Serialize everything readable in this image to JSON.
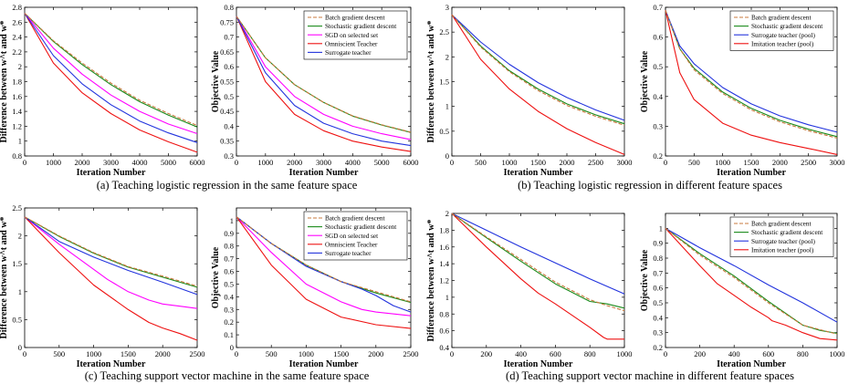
{
  "captions": {
    "a": "(a) Teaching logistic regression in the same feature space",
    "b": "(b) Teaching logistic regression in different feature spaces",
    "c": "(c) Teaching support vector machine in the same feature space",
    "d": "(d) Teaching support vector machine in different feature spaces"
  },
  "colors": {
    "batch": "#c8783c",
    "stochastic": "#1a8a1a",
    "sgd_selected": "#ff00ff",
    "omniscient": "#ee1111",
    "surrogate": "#2233dd",
    "imitation": "#ee1111",
    "axis": "#000000"
  },
  "chart_data": [
    {
      "id": "a1",
      "type": "line",
      "title": "",
      "xlabel": "Iteration Number",
      "ylabel": "Difference between w^t and w*",
      "xlim": [
        0,
        6000
      ],
      "ylim": [
        0.8,
        2.8
      ],
      "xticks": [
        0,
        1000,
        2000,
        3000,
        4000,
        5000,
        6000
      ],
      "yticks": [
        0.8,
        1,
        1.2,
        1.4,
        1.6,
        1.8,
        2,
        2.2,
        2.4,
        2.6,
        2.8
      ],
      "legend": null,
      "series": [
        {
          "name": "Batch gradient descent",
          "key": "batch",
          "dashed": true,
          "x": [
            0,
            1000,
            2000,
            3000,
            4000,
            5000,
            6000
          ],
          "y": [
            2.72,
            2.35,
            2.05,
            1.78,
            1.55,
            1.37,
            1.21
          ]
        },
        {
          "name": "Stochastic gradient descent",
          "key": "stochastic",
          "x": [
            0,
            1000,
            2000,
            3000,
            4000,
            5000,
            6000
          ],
          "y": [
            2.72,
            2.34,
            2.03,
            1.76,
            1.53,
            1.35,
            1.19
          ]
        },
        {
          "name": "SGD on selected set",
          "key": "sgd_selected",
          "x": [
            0,
            1000,
            2000,
            3000,
            4000,
            5000,
            6000
          ],
          "y": [
            2.72,
            2.25,
            1.9,
            1.62,
            1.4,
            1.23,
            1.1
          ]
        },
        {
          "name": "Omniscient Teacher",
          "key": "omniscient",
          "x": [
            0,
            1000,
            2000,
            3000,
            4000,
            5000,
            6000
          ],
          "y": [
            2.72,
            2.05,
            1.65,
            1.37,
            1.15,
            0.99,
            0.85
          ]
        },
        {
          "name": "Surrogate teacher",
          "key": "surrogate",
          "x": [
            0,
            1000,
            2000,
            3000,
            4000,
            5000,
            6000
          ],
          "y": [
            2.72,
            2.15,
            1.77,
            1.49,
            1.27,
            1.11,
            0.98
          ]
        }
      ]
    },
    {
      "id": "a2",
      "type": "line",
      "title": "",
      "xlabel": "Iteration Number",
      "ylabel": "Objective Value",
      "xlim": [
        0,
        6000
      ],
      "ylim": [
        0.3,
        0.8
      ],
      "xticks": [
        0,
        1000,
        2000,
        3000,
        4000,
        5000,
        6000
      ],
      "yticks": [
        0.3,
        0.35,
        0.4,
        0.45,
        0.5,
        0.55,
        0.6,
        0.65,
        0.7,
        0.75,
        0.8
      ],
      "legend": "top-right",
      "series": [
        {
          "name": "Batch gradient descent",
          "key": "batch",
          "dashed": true,
          "x": [
            0,
            1000,
            2000,
            3000,
            4000,
            5000,
            6000
          ],
          "y": [
            0.77,
            0.63,
            0.54,
            0.48,
            0.435,
            0.405,
            0.38
          ]
        },
        {
          "name": "Stochastic gradient descent",
          "key": "stochastic",
          "x": [
            0,
            1000,
            2000,
            3000,
            4000,
            5000,
            6000
          ],
          "y": [
            0.77,
            0.63,
            0.54,
            0.48,
            0.434,
            0.404,
            0.379
          ]
        },
        {
          "name": "SGD on selected set",
          "key": "sgd_selected",
          "x": [
            0,
            1000,
            2000,
            3000,
            4000,
            5000,
            6000
          ],
          "y": [
            0.77,
            0.6,
            0.5,
            0.44,
            0.4,
            0.375,
            0.355
          ]
        },
        {
          "name": "Omniscient Teacher",
          "key": "omniscient",
          "x": [
            0,
            1000,
            2000,
            3000,
            4000,
            5000,
            6000
          ],
          "y": [
            0.77,
            0.55,
            0.44,
            0.385,
            0.35,
            0.33,
            0.315
          ]
        },
        {
          "name": "Surrogate teacher",
          "key": "surrogate",
          "x": [
            0,
            1000,
            2000,
            3000,
            4000,
            5000,
            6000
          ],
          "y": [
            0.77,
            0.58,
            0.47,
            0.41,
            0.375,
            0.35,
            0.335
          ]
        }
      ]
    },
    {
      "id": "b1",
      "type": "line",
      "title": "",
      "xlabel": "Iteration Number",
      "ylabel": "Difference between w^t and w*",
      "xlim": [
        0,
        3000
      ],
      "ylim": [
        0,
        3
      ],
      "xticks": [
        0,
        500,
        1000,
        1500,
        2000,
        2500,
        3000
      ],
      "yticks": [
        0,
        0.5,
        1,
        1.5,
        2,
        2.5,
        3
      ],
      "legend": null,
      "series": [
        {
          "name": "Batch gradient descent",
          "key": "batch",
          "dashed": true,
          "x": [
            0,
            500,
            1000,
            1500,
            2000,
            2500,
            3000
          ],
          "y": [
            2.85,
            2.2,
            1.7,
            1.32,
            1.02,
            0.8,
            0.62
          ]
        },
        {
          "name": "Stochastic gradient descent",
          "key": "stochastic",
          "x": [
            0,
            500,
            1000,
            1500,
            2000,
            2500,
            3000
          ],
          "y": [
            2.85,
            2.22,
            1.72,
            1.35,
            1.05,
            0.83,
            0.65
          ]
        },
        {
          "name": "Surrogate teacher (pool)",
          "key": "surrogate",
          "x": [
            0,
            500,
            1000,
            1500,
            2000,
            2500,
            3000
          ],
          "y": [
            2.85,
            2.3,
            1.85,
            1.48,
            1.18,
            0.93,
            0.72
          ]
        },
        {
          "name": "Imitation teacher (pool)",
          "key": "imitation",
          "x": [
            0,
            500,
            1000,
            1500,
            2000,
            2500,
            3000
          ],
          "y": [
            2.85,
            1.95,
            1.35,
            0.9,
            0.55,
            0.27,
            0.03
          ]
        }
      ]
    },
    {
      "id": "b2",
      "type": "line",
      "title": "",
      "xlabel": "Iteration Number",
      "ylabel": "Objective Value",
      "xlim": [
        0,
        3000
      ],
      "ylim": [
        0.2,
        0.7
      ],
      "xticks": [
        0,
        500,
        1000,
        1500,
        2000,
        2500,
        3000
      ],
      "yticks": [
        0.2,
        0.3,
        0.4,
        0.5,
        0.6,
        0.7
      ],
      "legend": "top-right",
      "series": [
        {
          "name": "Batch gradient descent",
          "key": "batch",
          "dashed": true,
          "x": [
            0,
            250,
            500,
            1000,
            1500,
            2000,
            2500,
            3000
          ],
          "y": [
            0.69,
            0.56,
            0.49,
            0.41,
            0.355,
            0.315,
            0.285,
            0.26
          ]
        },
        {
          "name": "Stochastic gradient descent",
          "key": "stochastic",
          "x": [
            0,
            250,
            500,
            1000,
            1500,
            2000,
            2500,
            3000
          ],
          "y": [
            0.69,
            0.56,
            0.495,
            0.415,
            0.36,
            0.32,
            0.29,
            0.265
          ]
        },
        {
          "name": "Surrogate teacher (pool)",
          "key": "surrogate",
          "x": [
            0,
            250,
            500,
            1000,
            1500,
            2000,
            2500,
            3000
          ],
          "y": [
            0.69,
            0.57,
            0.51,
            0.43,
            0.375,
            0.335,
            0.305,
            0.28
          ]
        },
        {
          "name": "Imitation teacher (pool)",
          "key": "imitation",
          "x": [
            0,
            250,
            500,
            1000,
            1500,
            2000,
            2500,
            3000
          ],
          "y": [
            0.69,
            0.48,
            0.39,
            0.31,
            0.27,
            0.245,
            0.225,
            0.205
          ]
        }
      ]
    },
    {
      "id": "c1",
      "type": "line",
      "title": "",
      "xlabel": "Iteration Number",
      "ylabel": "Difference between w^t and w*",
      "xlim": [
        0,
        2500
      ],
      "ylim": [
        0,
        2.5
      ],
      "xticks": [
        0,
        500,
        1000,
        1500,
        2000,
        2500
      ],
      "yticks": [
        0,
        0.5,
        1,
        1.5,
        2,
        2.5
      ],
      "legend": null,
      "series": [
        {
          "name": "Batch gradient descent",
          "key": "batch",
          "dashed": true,
          "x": [
            0,
            500,
            1000,
            1500,
            2000,
            2500
          ],
          "y": [
            2.34,
            2.0,
            1.7,
            1.45,
            1.28,
            1.1
          ]
        },
        {
          "name": "Stochastic gradient descent",
          "key": "stochastic",
          "x": [
            0,
            500,
            1000,
            1500,
            2000,
            2500
          ],
          "y": [
            2.34,
            1.99,
            1.69,
            1.44,
            1.26,
            1.08
          ]
        },
        {
          "name": "SGD on selected set",
          "key": "sgd_selected",
          "x": [
            0,
            500,
            1000,
            1200,
            1500,
            1800,
            2000,
            2250,
            2500
          ],
          "y": [
            2.34,
            1.85,
            1.4,
            1.22,
            1.0,
            0.85,
            0.78,
            0.74,
            0.7
          ]
        },
        {
          "name": "Omniscient Teacher",
          "key": "omniscient",
          "x": [
            0,
            500,
            1000,
            1500,
            1800,
            2000,
            2250,
            2500
          ],
          "y": [
            2.34,
            1.7,
            1.12,
            0.68,
            0.45,
            0.35,
            0.25,
            0.13
          ]
        },
        {
          "name": "Surrogate teacher",
          "key": "surrogate",
          "x": [
            0,
            500,
            1000,
            1500,
            2000,
            2500
          ],
          "y": [
            2.34,
            1.9,
            1.62,
            1.38,
            1.17,
            0.95
          ]
        }
      ]
    },
    {
      "id": "c2",
      "type": "line",
      "title": "",
      "xlabel": "Iteration Number",
      "ylabel": "Objective Value",
      "xlim": [
        0,
        2500
      ],
      "ylim": [
        0,
        1.1
      ],
      "xticks": [
        0,
        500,
        1000,
        1500,
        2000,
        2500
      ],
      "yticks": [
        0,
        0.1,
        0.2,
        0.3,
        0.4,
        0.5,
        0.6,
        0.7,
        0.8,
        0.9,
        1
      ],
      "legend": "top-right",
      "series": [
        {
          "name": "Batch gradient descent",
          "key": "batch",
          "dashed": true,
          "x": [
            0,
            500,
            1000,
            1500,
            2000,
            2500
          ],
          "y": [
            1.03,
            0.82,
            0.65,
            0.52,
            0.44,
            0.36
          ]
        },
        {
          "name": "Stochastic gradient descent",
          "key": "stochastic",
          "x": [
            0,
            500,
            1000,
            1500,
            2000,
            2500
          ],
          "y": [
            1.03,
            0.82,
            0.65,
            0.52,
            0.43,
            0.355
          ]
        },
        {
          "name": "SGD on selected set",
          "key": "sgd_selected",
          "x": [
            0,
            500,
            1000,
            1500,
            1800,
            2000,
            2500
          ],
          "y": [
            1.03,
            0.75,
            0.5,
            0.36,
            0.3,
            0.28,
            0.25
          ]
        },
        {
          "name": "Omniscient Teacher",
          "key": "omniscient",
          "x": [
            0,
            500,
            1000,
            1500,
            2000,
            2500
          ],
          "y": [
            1.03,
            0.65,
            0.38,
            0.24,
            0.18,
            0.15
          ]
        },
        {
          "name": "Surrogate teacher",
          "key": "surrogate",
          "x": [
            0,
            500,
            1000,
            1500,
            1800,
            2000,
            2250,
            2500
          ],
          "y": [
            1.03,
            0.82,
            0.64,
            0.52,
            0.46,
            0.41,
            0.33,
            0.28
          ]
        }
      ]
    },
    {
      "id": "d1",
      "type": "line",
      "title": "",
      "xlabel": "Iteration Number",
      "ylabel": "Difference between w^t and w*",
      "xlim": [
        0,
        1000
      ],
      "ylim": [
        0.4,
        2.0
      ],
      "xticks": [
        0,
        200,
        400,
        600,
        800,
        1000
      ],
      "yticks": [
        0.4,
        0.6,
        0.8,
        1,
        1.2,
        1.4,
        1.6,
        1.8,
        2
      ],
      "legend": null,
      "series": [
        {
          "name": "Batch gradient descent",
          "key": "batch",
          "dashed": true,
          "x": [
            0,
            200,
            400,
            600,
            800,
            900,
            1000
          ],
          "y": [
            2.0,
            1.72,
            1.45,
            1.18,
            0.97,
            0.9,
            0.84
          ]
        },
        {
          "name": "Stochastic gradient descent",
          "key": "stochastic",
          "x": [
            0,
            200,
            400,
            600,
            800,
            900,
            1000
          ],
          "y": [
            2.0,
            1.71,
            1.43,
            1.16,
            0.95,
            0.92,
            0.87
          ]
        },
        {
          "name": "Surrogate teacher (pool)",
          "key": "surrogate",
          "x": [
            0,
            200,
            400,
            600,
            800,
            1000
          ],
          "y": [
            2.0,
            1.8,
            1.6,
            1.41,
            1.22,
            1.04
          ]
        },
        {
          "name": "Imitation teacher (pool)",
          "key": "imitation",
          "x": [
            0,
            200,
            400,
            500,
            600,
            700,
            800,
            880,
            900,
            950,
            1000
          ],
          "y": [
            2.0,
            1.6,
            1.22,
            1.05,
            0.92,
            0.78,
            0.64,
            0.52,
            0.5,
            0.5,
            0.5
          ]
        }
      ]
    },
    {
      "id": "d2",
      "type": "line",
      "title": "",
      "xlabel": "Iteration Number",
      "ylabel": "Objective Value",
      "xlim": [
        0,
        1000
      ],
      "ylim": [
        0.2,
        1.1
      ],
      "xticks": [
        0,
        200,
        400,
        600,
        800,
        1000
      ],
      "yticks": [
        0.2,
        0.3,
        0.4,
        0.5,
        0.6,
        0.7,
        0.8,
        0.9,
        1
      ],
      "legend": "top-right",
      "series": [
        {
          "name": "Batch gradient descent",
          "key": "batch",
          "dashed": true,
          "x": [
            0,
            200,
            400,
            600,
            800,
            900,
            1000
          ],
          "y": [
            1.0,
            0.82,
            0.67,
            0.5,
            0.35,
            0.32,
            0.29
          ]
        },
        {
          "name": "Stochastic gradient descent",
          "key": "stochastic",
          "x": [
            0,
            200,
            400,
            600,
            800,
            900,
            1000
          ],
          "y": [
            1.0,
            0.83,
            0.68,
            0.51,
            0.35,
            0.315,
            0.295
          ]
        },
        {
          "name": "Surrogate teacher (pool)",
          "key": "surrogate",
          "x": [
            0,
            200,
            400,
            600,
            800,
            1000
          ],
          "y": [
            1.0,
            0.87,
            0.75,
            0.62,
            0.5,
            0.37
          ]
        },
        {
          "name": "Imitation teacher (pool)",
          "key": "imitation",
          "x": [
            0,
            200,
            300,
            400,
            500,
            600,
            620,
            700,
            800,
            900,
            1000
          ],
          "y": [
            1.0,
            0.75,
            0.63,
            0.55,
            0.47,
            0.4,
            0.38,
            0.35,
            0.3,
            0.26,
            0.25
          ]
        }
      ]
    }
  ]
}
